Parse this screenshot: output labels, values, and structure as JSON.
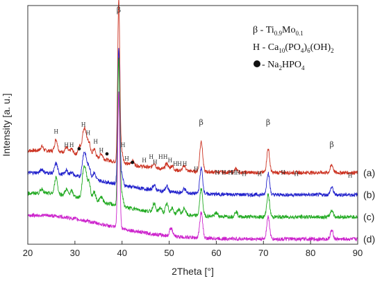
{
  "chart_data": {
    "type": "line",
    "xlabel": "2Theta [°]",
    "ylabel": "Intensity [a. u.]",
    "xlim": [
      20,
      90
    ],
    "x_ticks": [
      20,
      30,
      40,
      50,
      60,
      70,
      80,
      90
    ],
    "grid": false,
    "legend_position": "top-right",
    "legend": [
      {
        "symbol": "β",
        "separator": " - ",
        "formula": [
          [
            "Ti",
            ""
          ],
          [
            "0.9",
            "sub"
          ],
          [
            "Mo",
            ""
          ],
          [
            "0.1",
            "sub"
          ]
        ]
      },
      {
        "symbol": "H",
        "separator": " - ",
        "formula": [
          [
            "Ca",
            ""
          ],
          [
            "10",
            "sub"
          ],
          [
            "(PO",
            ""
          ],
          [
            "4",
            "sub"
          ],
          [
            ")",
            ""
          ],
          [
            "6",
            "sub"
          ],
          [
            "(OH)",
            ""
          ],
          [
            "2",
            "sub"
          ]
        ]
      },
      {
        "symbol": "●",
        "separator": " - ",
        "formula": [
          [
            "Na",
            ""
          ],
          [
            "2",
            "sub"
          ],
          [
            "HPO",
            ""
          ],
          [
            "4",
            "sub"
          ]
        ]
      }
    ],
    "series": [
      {
        "name": "(a)",
        "color": "#cc3322",
        "baseline": 4.2,
        "hump": 1.3,
        "peaks": [
          [
            23.0,
            0.25
          ],
          [
            26.0,
            0.7
          ],
          [
            28.2,
            0.3
          ],
          [
            29.3,
            0.25
          ],
          [
            31.0,
            0.5
          ],
          [
            31.8,
            1.2
          ],
          [
            32.3,
            1.1
          ],
          [
            33.0,
            0.8
          ],
          [
            34.1,
            0.5
          ],
          [
            35.6,
            0.3
          ],
          [
            39.3,
            9.5
          ],
          [
            39.9,
            0.7
          ],
          [
            42.2,
            0.25
          ],
          [
            46.8,
            0.3
          ],
          [
            49.5,
            0.35
          ],
          [
            50.6,
            0.25
          ],
          [
            53.2,
            0.3
          ],
          [
            56.8,
            1.8
          ],
          [
            64.2,
            0.2
          ],
          [
            71.0,
            1.4
          ],
          [
            84.5,
            0.45
          ]
        ]
      },
      {
        "name": "(b)",
        "color": "#2222cc",
        "baseline": 2.9,
        "hump": 1.3,
        "peaks": [
          [
            23.0,
            0.2
          ],
          [
            26.0,
            0.6
          ],
          [
            28.2,
            0.25
          ],
          [
            29.3,
            0.2
          ],
          [
            31.8,
            1.1
          ],
          [
            32.3,
            1.0
          ],
          [
            33.0,
            0.7
          ],
          [
            34.1,
            0.4
          ],
          [
            39.3,
            8.0
          ],
          [
            39.9,
            0.6
          ],
          [
            46.8,
            0.3
          ],
          [
            49.5,
            0.3
          ],
          [
            53.2,
            0.25
          ],
          [
            56.8,
            1.5
          ],
          [
            71.0,
            1.3
          ],
          [
            84.5,
            0.45
          ]
        ]
      },
      {
        "name": "(c)",
        "color": "#22aa22",
        "baseline": 1.6,
        "hump": 1.4,
        "peaks": [
          [
            23.0,
            0.25
          ],
          [
            26.0,
            1.0
          ],
          [
            28.2,
            0.35
          ],
          [
            29.3,
            0.3
          ],
          [
            31.8,
            1.4
          ],
          [
            32.3,
            1.3
          ],
          [
            33.0,
            1.0
          ],
          [
            34.1,
            0.5
          ],
          [
            35.6,
            0.3
          ],
          [
            39.3,
            8.5
          ],
          [
            39.9,
            0.8
          ],
          [
            46.8,
            0.5
          ],
          [
            48.1,
            0.3
          ],
          [
            49.5,
            0.55
          ],
          [
            50.6,
            0.35
          ],
          [
            52.0,
            0.3
          ],
          [
            53.2,
            0.4
          ],
          [
            56.8,
            1.6
          ],
          [
            60.0,
            0.2
          ],
          [
            64.2,
            0.3
          ],
          [
            71.0,
            1.3
          ],
          [
            84.5,
            0.4
          ]
        ]
      },
      {
        "name": "(d)",
        "color": "#cc22cc",
        "baseline": 0.3,
        "hump": 1.4,
        "peaks": [
          [
            39.3,
            8.0
          ],
          [
            50.4,
            0.5
          ],
          [
            56.8,
            1.5
          ],
          [
            71.0,
            1.3
          ],
          [
            84.5,
            0.5
          ]
        ]
      }
    ],
    "annotations": [
      {
        "text": "β",
        "x": 39.3,
        "y": 13.6,
        "kind": "beta"
      },
      {
        "text": "β",
        "x": 56.8,
        "y": 7.0,
        "kind": "beta"
      },
      {
        "text": "β",
        "x": 71.0,
        "y": 7.0,
        "kind": "beta"
      },
      {
        "text": "β",
        "x": 84.5,
        "y": 5.7,
        "kind": "beta"
      },
      {
        "text": "H",
        "x": 26.0,
        "y": 6.5,
        "kind": "H"
      },
      {
        "text": "H",
        "x": 28.2,
        "y": 5.7,
        "kind": "H"
      },
      {
        "text": "H",
        "x": 29.3,
        "y": 5.7,
        "kind": "H"
      },
      {
        "text": "H",
        "x": 31.8,
        "y": 6.9,
        "kind": "H"
      },
      {
        "text": "H",
        "x": 32.8,
        "y": 6.4,
        "kind": "H"
      },
      {
        "text": "H",
        "x": 34.4,
        "y": 5.9,
        "kind": "H"
      },
      {
        "text": "H",
        "x": 35.6,
        "y": 5.4,
        "kind": "H"
      },
      {
        "text": "H",
        "x": 40.2,
        "y": 5.7,
        "kind": "H"
      },
      {
        "text": "H",
        "x": 41.0,
        "y": 4.9,
        "kind": "H"
      },
      {
        "text": "H",
        "x": 44.7,
        "y": 4.8,
        "kind": "H"
      },
      {
        "text": "H",
        "x": 46.2,
        "y": 5.0,
        "kind": "H"
      },
      {
        "text": "H",
        "x": 47.0,
        "y": 4.7,
        "kind": "H"
      },
      {
        "text": "H",
        "x": 48.2,
        "y": 5.0,
        "kind": "H"
      },
      {
        "text": "H",
        "x": 49.2,
        "y": 5.0,
        "kind": "H"
      },
      {
        "text": "H",
        "x": 50.2,
        "y": 4.8,
        "kind": "H"
      },
      {
        "text": "H",
        "x": 51.3,
        "y": 4.6,
        "kind": "H"
      },
      {
        "text": "H",
        "x": 52.2,
        "y": 4.6,
        "kind": "H"
      },
      {
        "text": "H",
        "x": 53.3,
        "y": 4.6,
        "kind": "H"
      },
      {
        "text": "H",
        "x": 55.7,
        "y": 4.3,
        "kind": "H"
      },
      {
        "text": "H",
        "x": 60.2,
        "y": 4.1,
        "kind": "H"
      },
      {
        "text": "H",
        "x": 61.6,
        "y": 4.1,
        "kind": "H"
      },
      {
        "text": "H",
        "x": 63.0,
        "y": 4.1,
        "kind": "H"
      },
      {
        "text": "H",
        "x": 63.7,
        "y": 4.1,
        "kind": "H"
      },
      {
        "text": "H",
        "x": 64.6,
        "y": 4.1,
        "kind": "H"
      },
      {
        "text": "H",
        "x": 65.9,
        "y": 4.0,
        "kind": "H"
      },
      {
        "text": "H",
        "x": 69.2,
        "y": 4.0,
        "kind": "H"
      },
      {
        "text": "H",
        "x": 74.2,
        "y": 4.1,
        "kind": "H"
      },
      {
        "text": "H",
        "x": 77.0,
        "y": 4.0,
        "kind": "H"
      },
      {
        "text": "H",
        "x": 88.4,
        "y": 3.9,
        "kind": "H"
      },
      {
        "text": "●",
        "x": 30.9,
        "y": 5.6,
        "kind": "dot"
      },
      {
        "text": "●",
        "x": 36.8,
        "y": 5.3,
        "kind": "dot"
      },
      {
        "text": "●",
        "x": 42.2,
        "y": 4.8,
        "kind": "dot"
      }
    ]
  }
}
